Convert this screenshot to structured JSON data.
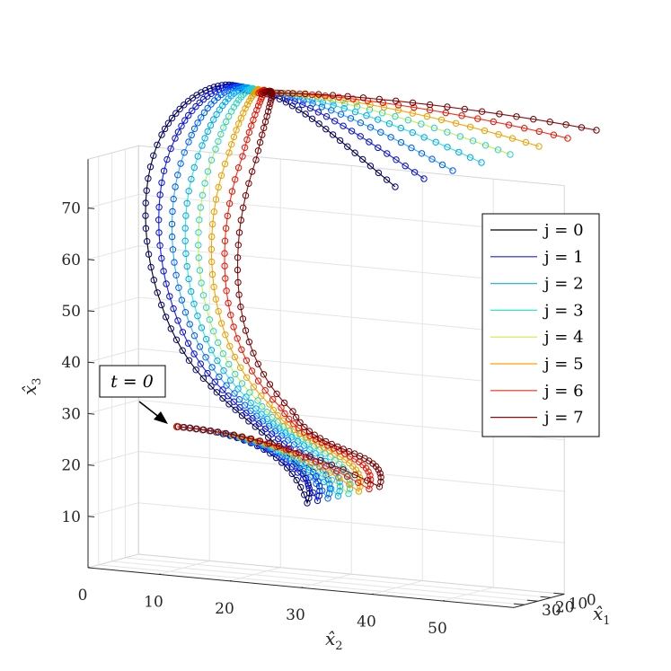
{
  "chart_data": {
    "type": "line",
    "projection": "3d",
    "grid": true,
    "legend_position": "right",
    "markers": "open-circles",
    "axes": {
      "x1": {
        "label": "x̂",
        "subscript": "1",
        "ticks": [
          0,
          10,
          20,
          30
        ]
      },
      "x2": {
        "label": "x̂",
        "subscript": "2",
        "ticks": [
          0,
          10,
          20,
          30,
          40,
          50
        ]
      },
      "x3": {
        "label": "x̂",
        "subscript": "3",
        "ticks": [
          10,
          20,
          30,
          40,
          50,
          60,
          70
        ]
      }
    },
    "annotation": {
      "text": "t = 0"
    },
    "series": [
      {
        "name": "j = 0",
        "color": "#000000",
        "shift": 0.0
      },
      {
        "name": "j = 1",
        "color": "#1c1cff",
        "shift": 1.0
      },
      {
        "name": "j = 2",
        "color": "#2fb0ff",
        "shift": 2.0
      },
      {
        "name": "j = 3",
        "color": "#2fe8c8",
        "shift": 3.0
      },
      {
        "name": "j = 4",
        "color": "#c8f040",
        "shift": 4.0
      },
      {
        "name": "j = 5",
        "color": "#ffa000",
        "shift": 5.0
      },
      {
        "name": "j = 6",
        "color": "#ff2a10",
        "shift": 6.0
      },
      {
        "name": "j = 7",
        "color": "#8a0a0a",
        "shift": 7.0
      }
    ],
    "edge_colors": [
      "#000090",
      "#0010d0",
      "#0050ff",
      "#00a0ff",
      "#20d0e0",
      "#e8a000",
      "#e81000",
      "#700000"
    ]
  }
}
